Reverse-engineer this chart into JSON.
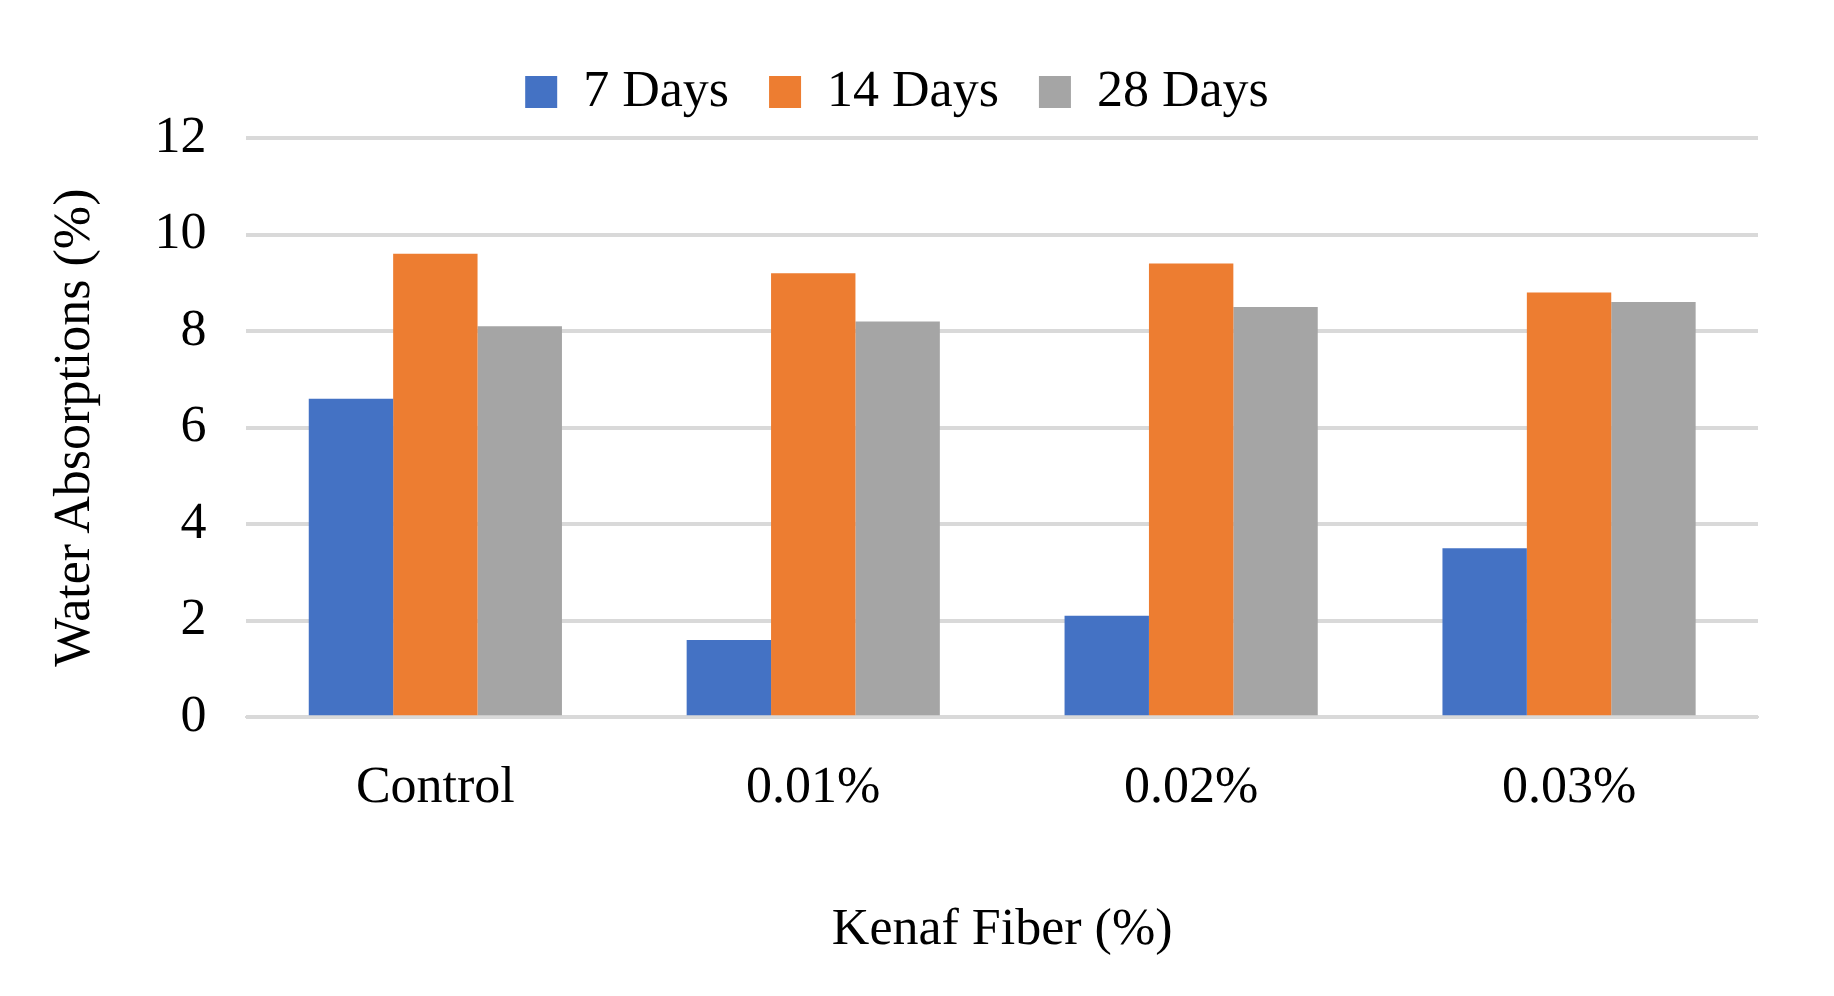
{
  "chart_data": {
    "type": "bar",
    "xlabel": "Kenaf Fiber (%)",
    "ylabel": "Water Absorptions (%)",
    "categories": [
      "Control",
      "0.01%",
      "0.02%",
      "0.03%"
    ],
    "series": [
      {
        "name": "7 Days",
        "color": "#4472c4",
        "values": [
          6.6,
          1.6,
          2.1,
          3.5
        ]
      },
      {
        "name": "14 Days",
        "color": "#ed7d31",
        "values": [
          9.6,
          9.2,
          9.4,
          8.8
        ]
      },
      {
        "name": "28 Days",
        "color": "#a5a5a5",
        "values": [
          8.1,
          8.2,
          8.5,
          8.6
        ]
      }
    ],
    "ylim": [
      0,
      12
    ],
    "yticks": [
      0,
      2,
      4,
      6,
      8,
      10,
      12
    ],
    "grid": "y",
    "legend": "top"
  }
}
